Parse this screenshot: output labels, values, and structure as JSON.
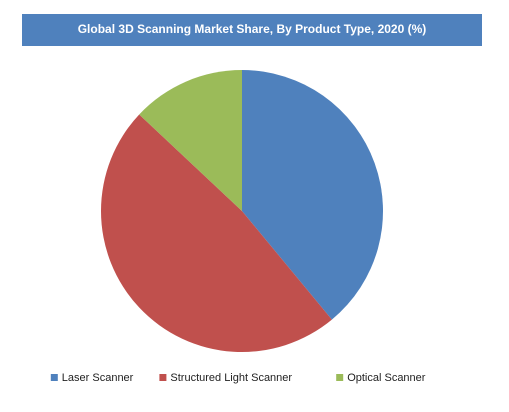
{
  "chart_data": {
    "type": "pie",
    "title": "Global 3D Scanning Market Share, By Product Type, 2020 (%)",
    "categories": [
      "Laser Scanner",
      "Structured Light Scanner",
      "Optical Scanner"
    ],
    "values": [
      39,
      48,
      13
    ],
    "colors": [
      "#4f81bd",
      "#c0504d",
      "#9bbb59"
    ],
    "title_background": "#4f81bd",
    "legend": "bottom"
  }
}
